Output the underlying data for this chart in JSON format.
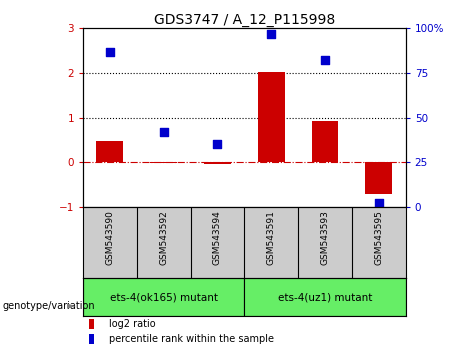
{
  "title": "GDS3747 / A_12_P115998",
  "samples": [
    "GSM543590",
    "GSM543592",
    "GSM543594",
    "GSM543591",
    "GSM543593",
    "GSM543595"
  ],
  "log2_ratio": [
    0.48,
    -0.03,
    -0.05,
    2.02,
    0.92,
    -0.72
  ],
  "percentile_rank": [
    87,
    42,
    35,
    97,
    82,
    2
  ],
  "ylim_left": [
    -1,
    3
  ],
  "ylim_right": [
    0,
    100
  ],
  "yticks_left": [
    -1,
    0,
    1,
    2,
    3
  ],
  "yticks_right": [
    0,
    25,
    50,
    75,
    100
  ],
  "hlines": [
    1,
    2
  ],
  "bar_color": "#cc0000",
  "dot_color": "#0000cc",
  "zero_line_color": "#cc0000",
  "group1_label": "ets-4(ok165) mutant",
  "group2_label": "ets-4(uz1) mutant",
  "group1_color": "#cccccc",
  "group2_color": "#66ee66",
  "legend_log2": "log2 ratio",
  "legend_pct": "percentile rank within the sample",
  "genotype_label": "genotype/variation",
  "title_fontsize": 10,
  "tick_fontsize": 7.5,
  "bar_width": 0.5,
  "dot_size": 28
}
